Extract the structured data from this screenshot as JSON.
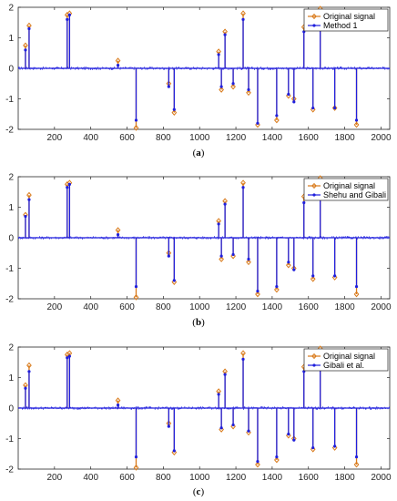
{
  "chart_data": [
    {
      "type": "stem",
      "caption": "(a)",
      "xlim": [
        0,
        2048
      ],
      "ylim": [
        -2,
        2
      ],
      "xticks": [
        200,
        400,
        600,
        800,
        1000,
        1200,
        1400,
        1600,
        1800,
        2000
      ],
      "yticks": [
        -2,
        -1,
        0,
        1,
        2
      ],
      "legend_position": "top-right",
      "series": [
        {
          "name": "Original signal",
          "color": "#d97a1a",
          "marker": "diamond",
          "x": [
            40,
            60,
            270,
            283,
            550,
            650,
            830,
            860,
            1105,
            1120,
            1140,
            1185,
            1240,
            1270,
            1320,
            1425,
            1490,
            1520,
            1575,
            1625,
            1665,
            1745,
            1865
          ],
          "y": [
            0.75,
            1.4,
            1.75,
            1.8,
            0.25,
            -1.95,
            -0.5,
            -1.45,
            0.55,
            -0.7,
            1.2,
            -0.6,
            1.8,
            -0.8,
            -1.85,
            -1.7,
            -0.9,
            -1.0,
            1.35,
            -1.35,
            1.95,
            -1.3,
            -1.85
          ]
        },
        {
          "name": "Method 1",
          "color": "#1f1fdd",
          "marker": "dot",
          "x": [
            40,
            60,
            270,
            283,
            550,
            650,
            830,
            860,
            1105,
            1120,
            1140,
            1185,
            1240,
            1270,
            1320,
            1425,
            1490,
            1520,
            1575,
            1625,
            1665,
            1745,
            1865
          ],
          "y": [
            0.6,
            1.3,
            1.6,
            1.75,
            0.1,
            -1.7,
            -0.6,
            -1.35,
            0.45,
            -0.6,
            1.1,
            -0.5,
            1.6,
            -0.7,
            -1.8,
            -1.55,
            -0.85,
            -1.1,
            1.2,
            -1.3,
            1.75,
            -1.3,
            -1.7
          ]
        }
      ]
    },
    {
      "type": "stem",
      "caption": "(b)",
      "xlim": [
        0,
        2048
      ],
      "ylim": [
        -2,
        2
      ],
      "xticks": [
        200,
        400,
        600,
        800,
        1000,
        1200,
        1400,
        1600,
        1800,
        2000
      ],
      "yticks": [
        -2,
        -1,
        0,
        1,
        2
      ],
      "legend_position": "top-right",
      "series": [
        {
          "name": "Original signal",
          "color": "#d97a1a",
          "marker": "diamond",
          "x": [
            40,
            60,
            270,
            283,
            550,
            650,
            830,
            860,
            1105,
            1120,
            1140,
            1185,
            1240,
            1270,
            1320,
            1425,
            1490,
            1520,
            1575,
            1625,
            1665,
            1745,
            1865
          ],
          "y": [
            0.75,
            1.4,
            1.75,
            1.8,
            0.25,
            -1.95,
            -0.5,
            -1.45,
            0.55,
            -0.7,
            1.2,
            -0.6,
            1.8,
            -0.8,
            -1.85,
            -1.7,
            -0.9,
            -1.0,
            1.35,
            -1.35,
            1.95,
            -1.3,
            -1.85
          ]
        },
        {
          "name": "Shehu and Gibali",
          "color": "#1f1fdd",
          "marker": "dot",
          "x": [
            40,
            60,
            270,
            283,
            550,
            650,
            830,
            860,
            1105,
            1120,
            1140,
            1185,
            1240,
            1270,
            1320,
            1425,
            1490,
            1520,
            1575,
            1625,
            1665,
            1745,
            1865
          ],
          "y": [
            0.7,
            1.25,
            1.65,
            1.75,
            0.1,
            -1.6,
            -0.6,
            -1.4,
            0.45,
            -0.6,
            1.1,
            -0.55,
            1.65,
            -0.7,
            -1.75,
            -1.6,
            -0.8,
            -1.05,
            1.15,
            -1.25,
            1.8,
            -1.25,
            -1.6
          ]
        }
      ]
    },
    {
      "type": "stem",
      "caption": "(c)",
      "xlim": [
        0,
        2048
      ],
      "ylim": [
        -2,
        2
      ],
      "xticks": [
        200,
        400,
        600,
        800,
        1000,
        1200,
        1400,
        1600,
        1800,
        2000
      ],
      "yticks": [
        -2,
        -1,
        0,
        1,
        2
      ],
      "legend_position": "top-right",
      "series": [
        {
          "name": "Original signal",
          "color": "#d97a1a",
          "marker": "diamond",
          "x": [
            40,
            60,
            270,
            283,
            550,
            650,
            830,
            860,
            1105,
            1120,
            1140,
            1185,
            1240,
            1270,
            1320,
            1425,
            1490,
            1520,
            1575,
            1625,
            1665,
            1745,
            1865
          ],
          "y": [
            0.75,
            1.4,
            1.75,
            1.8,
            0.25,
            -1.95,
            -0.5,
            -1.45,
            0.55,
            -0.7,
            1.2,
            -0.6,
            1.8,
            -0.8,
            -1.85,
            -1.7,
            -0.9,
            -1.0,
            1.35,
            -1.35,
            1.95,
            -1.3,
            -1.85
          ]
        },
        {
          "name": "Gibali et al.",
          "color": "#1f1fdd",
          "marker": "dot",
          "x": [
            40,
            60,
            270,
            283,
            550,
            650,
            830,
            860,
            1105,
            1120,
            1140,
            1185,
            1240,
            1270,
            1320,
            1425,
            1490,
            1520,
            1575,
            1625,
            1665,
            1745,
            1865
          ],
          "y": [
            0.65,
            1.2,
            1.65,
            1.7,
            0.1,
            -1.6,
            -0.6,
            -1.4,
            0.45,
            -0.65,
            1.1,
            -0.55,
            1.6,
            -0.75,
            -1.75,
            -1.6,
            -0.85,
            -1.05,
            1.2,
            -1.3,
            1.75,
            -1.25,
            -1.6
          ]
        }
      ]
    }
  ]
}
